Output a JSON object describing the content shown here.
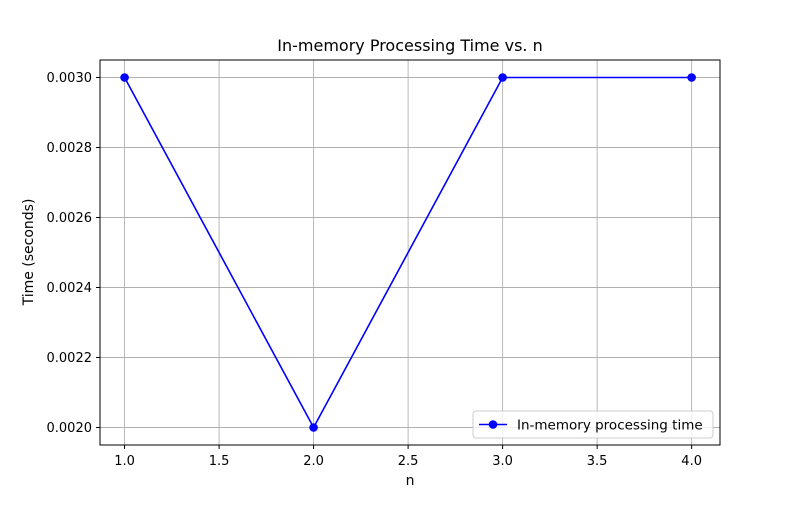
{
  "chart_data": {
    "type": "line",
    "title": "In-memory Processing Time vs. n",
    "xlabel": "n",
    "ylabel": "Time (seconds)",
    "xlim": [
      0.87,
      4.15
    ],
    "ylim": [
      0.00195,
      0.00305
    ],
    "xticks": [
      "1.0",
      "1.5",
      "2.0",
      "2.5",
      "3.0",
      "3.5",
      "4.0"
    ],
    "yticks": [
      "0.0020",
      "0.0022",
      "0.0024",
      "0.0026",
      "0.0028",
      "0.0030"
    ],
    "grid": true,
    "legend_position": "bottom-right",
    "series": [
      {
        "name": "In-memory processing time",
        "color": "#0000ff",
        "marker": "circle",
        "x": [
          1,
          2,
          3,
          4
        ],
        "y": [
          0.003,
          0.002,
          0.003,
          0.003
        ]
      }
    ]
  },
  "colors": {
    "grid": "#b0b0b0",
    "axes": "#000000",
    "legend_border": "#cccccc"
  }
}
